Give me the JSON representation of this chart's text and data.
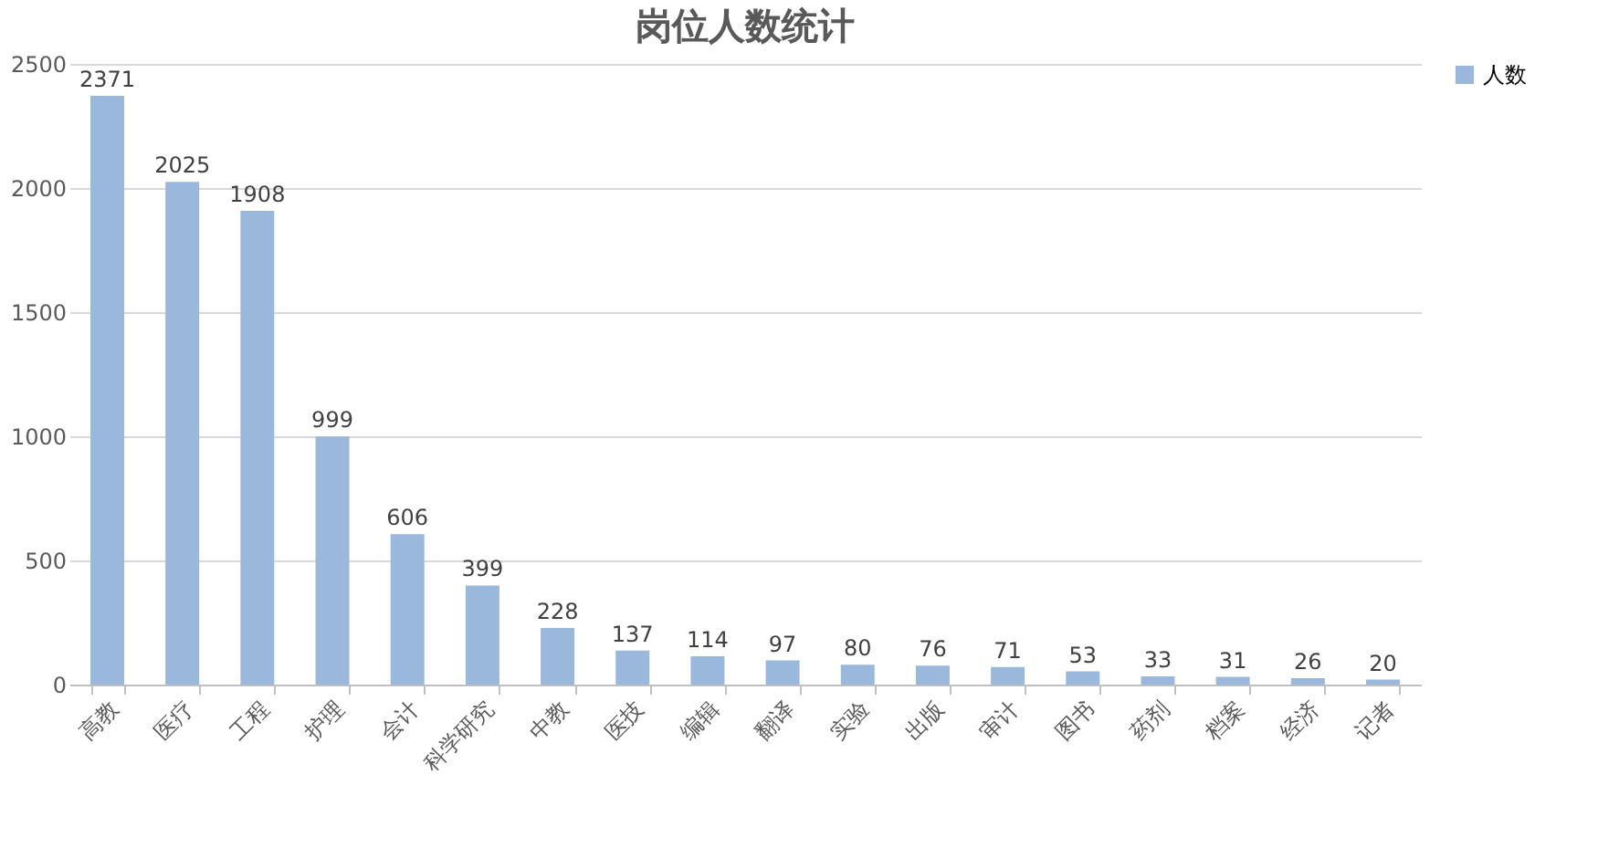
{
  "chart_data": {
    "type": "bar",
    "title": "岗位人数统计",
    "categories": [
      "高教",
      "医疗",
      "工程",
      "护理",
      "会计",
      "科学研究",
      "中教",
      "医技",
      "编辑",
      "翻译",
      "实验",
      "出版",
      "审计",
      "图书",
      "药剂",
      "档案",
      "经济",
      "记者"
    ],
    "series": [
      {
        "name": "人数",
        "color": "#9ab7dc",
        "values": [
          2371,
          2025,
          1908,
          999,
          606,
          399,
          228,
          137,
          114,
          97,
          80,
          76,
          71,
          53,
          33,
          31,
          26,
          20
        ]
      }
    ],
    "ylim": [
      0,
      2500
    ],
    "yticks": [
      0,
      500,
      1000,
      1500,
      2000,
      2500
    ],
    "grid": "y",
    "legend": "right",
    "data_labels": true
  }
}
